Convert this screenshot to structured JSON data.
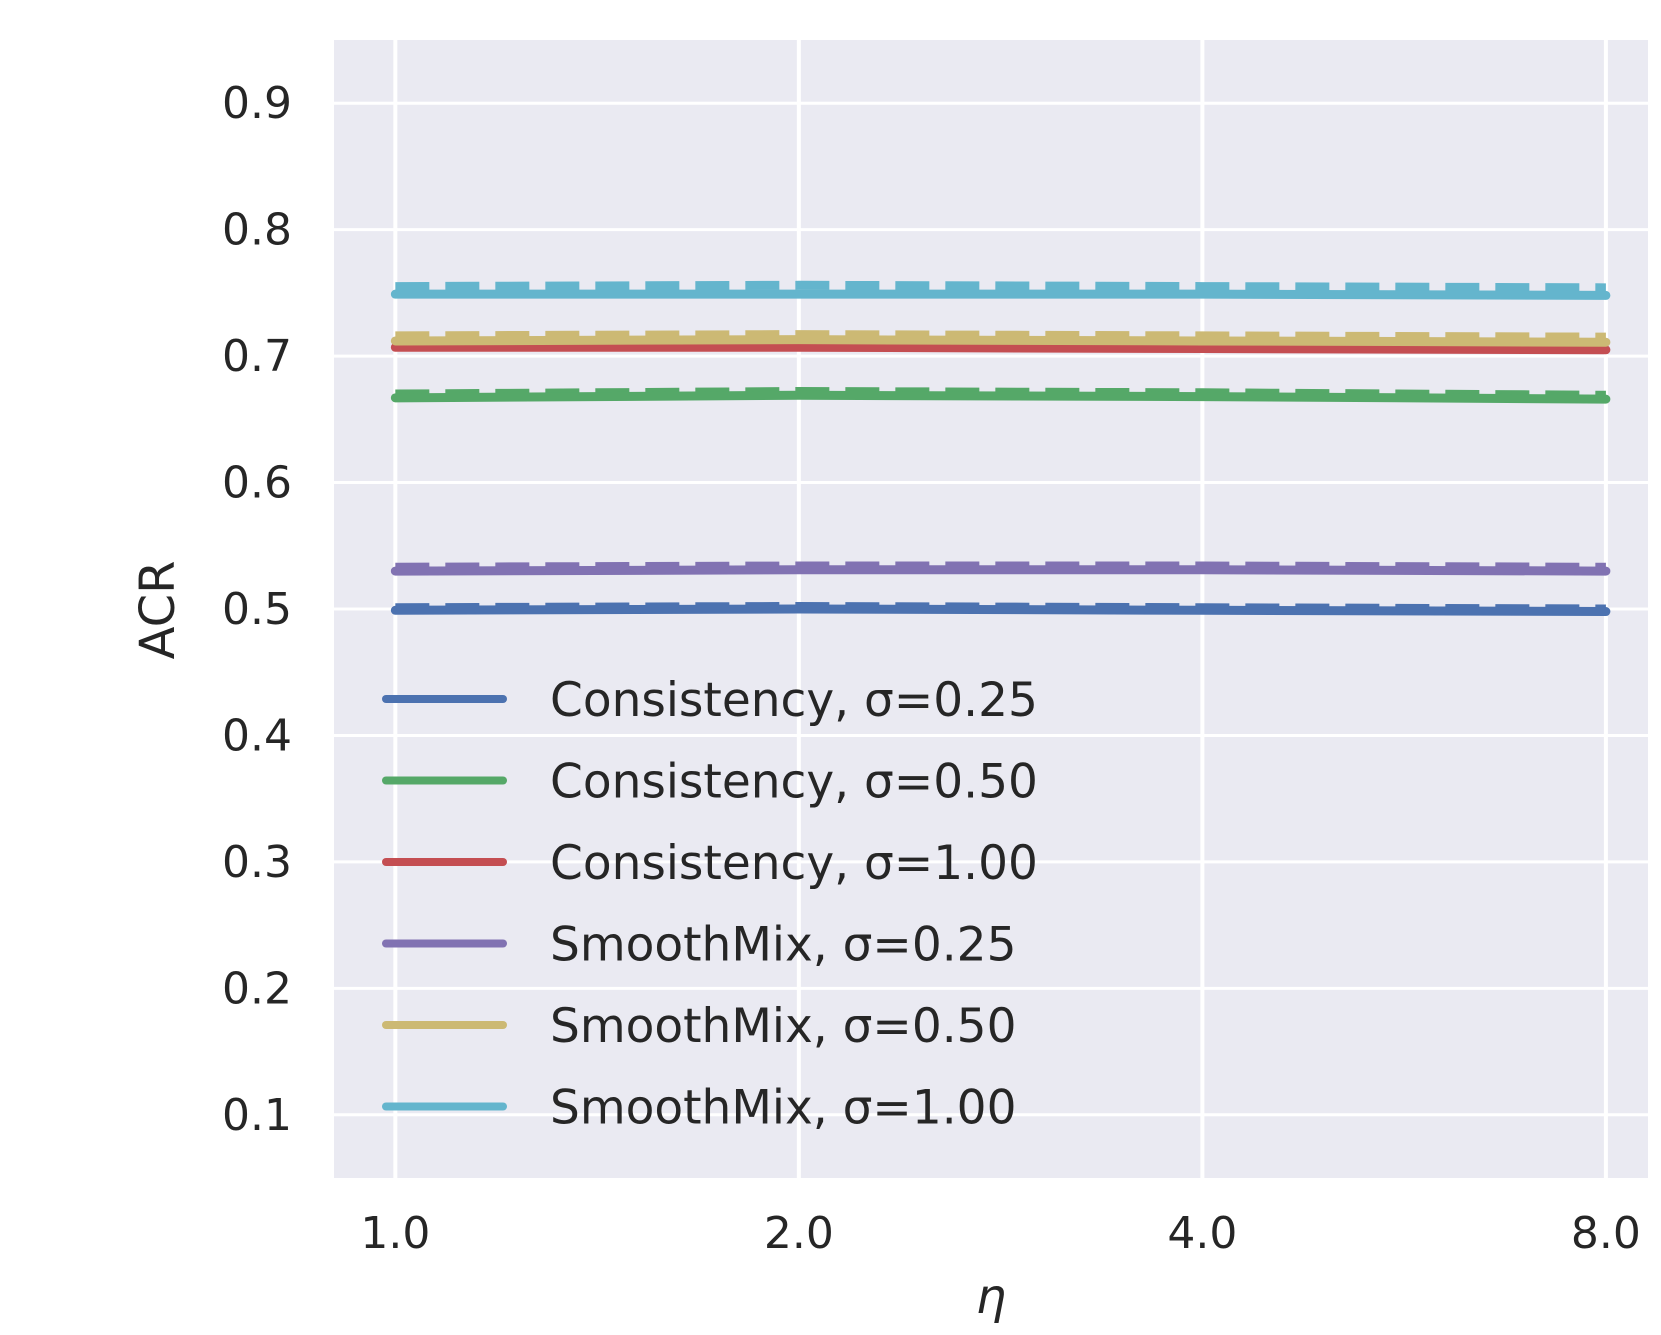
{
  "chart_data": {
    "type": "line",
    "title": "",
    "xlabel": "η",
    "ylabel": "ACR",
    "x_scale": "log2",
    "x": [
      1.0,
      2.0,
      4.0,
      8.0
    ],
    "x_tick_labels": [
      "1.0",
      "2.0",
      "4.0",
      "8.0"
    ],
    "xlim": [
      0.9,
      8.6
    ],
    "ylim": [
      0.05,
      0.95
    ],
    "y_ticks": [
      0.1,
      0.2,
      0.3,
      0.4,
      0.5,
      0.6,
      0.7,
      0.8,
      0.9
    ],
    "y_tick_labels": [
      "0.1",
      "0.2",
      "0.3",
      "0.4",
      "0.5",
      "0.6",
      "0.7",
      "0.8",
      "0.9"
    ],
    "grid": true,
    "legend_position": "lower-left",
    "series": [
      {
        "name": "Consistency, σ=0.25",
        "legend_label": "Consistency, σ=0.25",
        "color": "#4c72b0",
        "values": [
          0.499,
          0.5,
          0.499,
          0.498
        ],
        "dashed_values": [
          0.501,
          0.502,
          0.501,
          0.5
        ]
      },
      {
        "name": "Consistency, σ=0.50",
        "legend_label": "Consistency, σ=0.50",
        "color": "#55a868",
        "values": [
          0.667,
          0.669,
          0.668,
          0.666
        ],
        "dashed_values": [
          0.67,
          0.672,
          0.671,
          0.669
        ]
      },
      {
        "name": "Consistency, σ=1.00",
        "legend_label": "Consistency, σ=1.00",
        "color": "#c44e52",
        "values": [
          0.707,
          0.707,
          0.706,
          0.705
        ],
        "dashed_values": [
          0.709,
          0.709,
          0.708,
          0.707
        ]
      },
      {
        "name": "SmoothMix, σ=0.25",
        "legend_label": "SmoothMix, σ=0.25",
        "color": "#8172b2",
        "values": [
          0.53,
          0.531,
          0.531,
          0.53
        ],
        "dashed_values": [
          0.533,
          0.534,
          0.534,
          0.533
        ]
      },
      {
        "name": "SmoothMix, σ=0.50",
        "legend_label": "SmoothMix, σ=0.50",
        "color": "#ccb974",
        "values": [
          0.712,
          0.713,
          0.712,
          0.711
        ],
        "dashed_values": [
          0.716,
          0.717,
          0.716,
          0.715
        ]
      },
      {
        "name": "SmoothMix, σ=1.00",
        "legend_label": "SmoothMix, σ=1.00",
        "color": "#64b5cd",
        "values": [
          0.749,
          0.749,
          0.749,
          0.748
        ],
        "dashed_values": [
          0.755,
          0.756,
          0.755,
          0.754
        ]
      }
    ]
  }
}
